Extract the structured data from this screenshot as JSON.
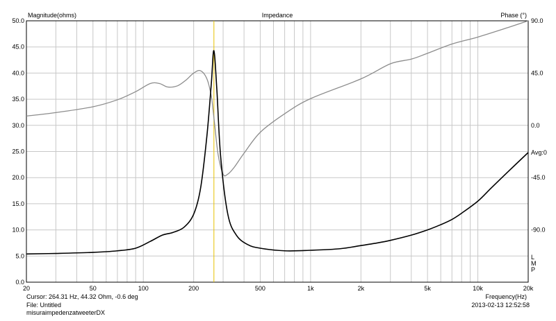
{
  "chart_data": {
    "type": "line",
    "title": "Impedance",
    "left_axis_label": "Magnitude(ohms)",
    "right_axis_label": "Phase (°)",
    "x_axis_label": "Frequency(Hz)",
    "x_scale": "log",
    "xlim": [
      20,
      20000
    ],
    "ylim": [
      0,
      50
    ],
    "y2lim": [
      -135,
      90
    ],
    "x_tick_labels": [
      "20",
      "50",
      "100",
      "200",
      "500",
      "1k",
      "2k",
      "5k",
      "10k",
      "20k"
    ],
    "x_tick_values": [
      20,
      50,
      100,
      200,
      500,
      1000,
      2000,
      5000,
      10000,
      20000
    ],
    "y_tick_labels": [
      "0.0",
      "5.0",
      "10.0",
      "15.0",
      "20.0",
      "25.0",
      "30.0",
      "35.0",
      "40.0",
      "45.0",
      "50.0"
    ],
    "y_tick_values": [
      0,
      5,
      10,
      15,
      20,
      25,
      30,
      35,
      40,
      45,
      50
    ],
    "y2_tick_labels": [
      "-90.0",
      "-45.0",
      "0.0",
      "45.0",
      "90.0"
    ],
    "y2_tick_values": [
      -90,
      -45,
      0,
      45,
      90
    ],
    "right_side_label_avg": "Avg:0",
    "right_side_label_lmp": [
      "L",
      "M",
      "P"
    ],
    "grid": true,
    "cursor_frequency": 264.31,
    "series": [
      {
        "name": "magnitude",
        "axis": "left",
        "color": "#000000",
        "x": [
          20,
          30,
          50,
          70,
          90,
          110,
          130,
          150,
          175,
          200,
          220,
          240,
          255,
          264,
          275,
          290,
          320,
          360,
          420,
          500,
          700,
          1000,
          1500,
          2000,
          2500,
          3000,
          4000,
          5000,
          6000,
          7000,
          8000,
          10000,
          12000,
          15000,
          20000
        ],
        "values": [
          5.4,
          5.5,
          5.7,
          6.0,
          6.5,
          7.8,
          9.0,
          9.5,
          10.5,
          13.0,
          18.0,
          28.0,
          38.0,
          44.3,
          37.0,
          24.0,
          13.0,
          9.0,
          7.2,
          6.5,
          6.0,
          6.1,
          6.4,
          7.0,
          7.5,
          8.0,
          9.0,
          10.0,
          11.0,
          12.0,
          13.2,
          15.5,
          18.0,
          21.0,
          24.8
        ]
      },
      {
        "name": "phase",
        "axis": "right",
        "color": "#8c8c8c",
        "x": [
          20,
          30,
          50,
          70,
          90,
          110,
          125,
          140,
          160,
          180,
          200,
          220,
          240,
          255,
          265,
          280,
          300,
          320,
          350,
          400,
          500,
          700,
          1000,
          2000,
          3000,
          4000,
          5000,
          7000,
          10000,
          15000,
          20000
        ],
        "values": [
          8,
          11,
          16,
          22,
          29,
          36,
          36,
          33,
          34,
          39,
          45,
          47,
          40,
          25,
          5,
          -25,
          -42,
          -42,
          -36,
          -24,
          -6,
          10,
          23,
          40,
          53,
          57,
          62,
          70,
          76,
          84,
          90
        ]
      }
    ]
  },
  "footer": {
    "cursor": "Cursor: 264.31 Hz, 44.32 Ohm, -0.6 deg",
    "file": "File: Untitled",
    "name": "misuraimpedenzatweeterDX",
    "timestamp": "2013-02-13 12:52:58"
  }
}
